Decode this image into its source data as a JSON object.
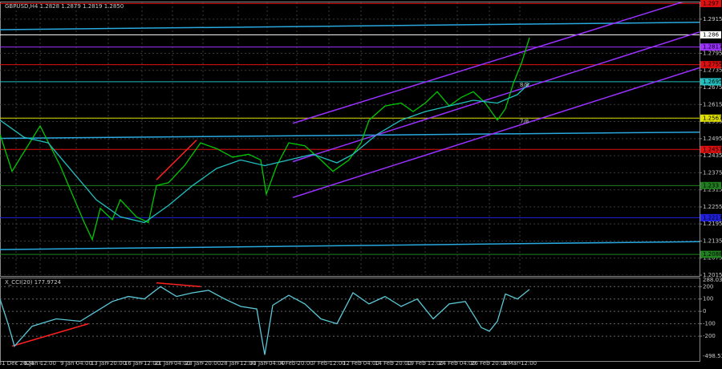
{
  "chart_data": [
    {
      "type": "line",
      "title": "GBPUSD,H4 1.2828 1.2879 1.2819 1.2850",
      "xlim": [
        0,
        872
      ],
      "xticks": [
        {
          "value": 20,
          "label": "31 Dec 2024"
        },
        {
          "value": 50,
          "label": "6 Jan 12:00"
        },
        {
          "value": 95,
          "label": "9 Jan 04:00"
        },
        {
          "value": 135,
          "label": "13 Jan 20:00"
        },
        {
          "value": 177,
          "label": "16 Jan 12:00"
        },
        {
          "value": 215,
          "label": "21 Jan 04:00"
        },
        {
          "value": 253,
          "label": "23 Jan 20:00"
        },
        {
          "value": 297,
          "label": "28 Jan 12:00"
        },
        {
          "value": 333,
          "label": "31 Jan 04:00"
        },
        {
          "value": 370,
          "label": "4 Feb 20:00"
        },
        {
          "value": 410,
          "label": "7 Feb 12:00"
        },
        {
          "value": 450,
          "label": "12 Feb 04:00"
        },
        {
          "value": 490,
          "label": "14 Feb 20:00"
        },
        {
          "value": 530,
          "label": "19 Feb 12:00"
        },
        {
          "value": 570,
          "label": "24 Feb 04:00"
        },
        {
          "value": 610,
          "label": "26 Feb 20:00"
        },
        {
          "value": 648,
          "label": "3 Mar 12:00"
        }
      ],
      "ylim": [
        1.2015,
        1.2974
      ],
      "yticks": [
        1.2915,
        1.2795,
        1.2735,
        1.2675,
        1.2615,
        1.2555,
        1.2495,
        1.2435,
        1.2375,
        1.2315,
        1.2255,
        1.2195,
        1.2135,
        1.2075,
        1.2015
      ],
      "grid": true,
      "series": [
        {
          "color": "#00c800",
          "x": [
            0,
            15,
            50,
            75,
            90,
            105,
            115,
            125,
            140,
            150,
            170,
            185,
            195,
            210,
            230,
            250,
            270,
            290,
            310,
            325,
            332,
            345,
            360,
            380,
            400,
            415,
            435,
            450,
            460,
            480,
            500,
            515,
            530,
            545,
            560,
            575,
            590,
            605,
            620,
            630,
            640,
            650,
            660
          ],
          "values": [
            1.251,
            1.238,
            1.254,
            1.24,
            1.23,
            1.22,
            1.214,
            1.225,
            1.221,
            1.228,
            1.222,
            1.22,
            1.233,
            1.234,
            1.24,
            1.248,
            1.246,
            1.243,
            1.244,
            1.242,
            1.23,
            1.24,
            1.248,
            1.247,
            1.242,
            1.238,
            1.242,
            1.248,
            1.256,
            1.261,
            1.262,
            1.259,
            1.262,
            1.266,
            1.261,
            1.264,
            1.266,
            1.262,
            1.256,
            1.26,
            1.269,
            1.276,
            1.285
          ]
        },
        {
          "color": "#20c0c0",
          "x": [
            0,
            30,
            60,
            90,
            120,
            150,
            180,
            210,
            240,
            270,
            300,
            330,
            360,
            390,
            420,
            440,
            470,
            500,
            530,
            560,
            590,
            620,
            645,
            660
          ],
          "values": [
            1.256,
            1.25,
            1.248,
            1.238,
            1.228,
            1.222,
            1.22,
            1.226,
            1.233,
            1.239,
            1.242,
            1.24,
            1.242,
            1.244,
            1.241,
            1.244,
            1.251,
            1.256,
            1.259,
            1.261,
            1.263,
            1.262,
            1.265,
            1.269
          ]
        }
      ],
      "trendlines": [
        {
          "color": "#2aa8e0",
          "x": [
            0,
            872
          ],
          "values": [
            1.2878,
            1.2904
          ]
        },
        {
          "color": "#2aa8e0",
          "x": [
            0,
            872
          ],
          "values": [
            1.2496,
            1.2518
          ]
        },
        {
          "color": "#2aa8e0",
          "x": [
            0,
            872
          ],
          "values": [
            1.2105,
            1.2133
          ]
        },
        {
          "color": "#9b30ff",
          "x": [
            365,
            872
          ],
          "values": [
            1.2549,
            1.2994
          ]
        },
        {
          "color": "#9b30ff",
          "x": [
            365,
            872
          ],
          "values": [
            1.2414,
            1.287
          ]
        },
        {
          "color": "#9b30ff",
          "x": [
            365,
            872
          ],
          "values": [
            1.2288,
            1.2744
          ]
        },
        {
          "color": "#ff2020",
          "x": [
            195,
            245
          ],
          "values": [
            1.235,
            1.249
          ]
        }
      ],
      "levels": [
        {
          "value": 1.297,
          "color": "#e01010"
        },
        {
          "value": 1.286,
          "color": "#ffffff"
        },
        {
          "value": 1.2817,
          "color": "#9b30ff"
        },
        {
          "value": 1.2755,
          "color": "#e01010"
        },
        {
          "value": 1.2695,
          "color": "#20c0c0"
        },
        {
          "value": 1.2567,
          "color": "#e0e000"
        },
        {
          "value": 1.2457,
          "color": "#e01010"
        },
        {
          "value": 1.233,
          "color": "#208020"
        },
        {
          "value": 1.2217,
          "color": "#2020e0"
        },
        {
          "value": 1.2088,
          "color": "#208020"
        }
      ],
      "annotations": [
        {
          "text": "8/8",
          "x": 648,
          "value": 1.2695
        },
        {
          "text": "7/8",
          "x": 648,
          "value": 1.2567
        }
      ]
    },
    {
      "type": "line",
      "title": "X_CCI(20) 177.9724",
      "xlim": [
        0,
        872
      ],
      "ylim": [
        -400,
        260
      ],
      "yticks": [
        200,
        100,
        0,
        -100,
        -200
      ],
      "scale_labels": [
        288.0311,
        -498.5384
      ],
      "series": [
        {
          "color": "#5bc8d8",
          "x": [
            0,
            10,
            18,
            40,
            70,
            100,
            120,
            140,
            160,
            180,
            200,
            220,
            240,
            260,
            280,
            300,
            320,
            330,
            340,
            360,
            380,
            400,
            420,
            440,
            460,
            480,
            500,
            520,
            540,
            560,
            580,
            600,
            610,
            620,
            630,
            645,
            660
          ],
          "values": [
            100,
            -100,
            -280,
            -120,
            -60,
            -80,
            0,
            80,
            120,
            100,
            200,
            120,
            150,
            170,
            100,
            40,
            20,
            -350,
            50,
            130,
            60,
            -60,
            -100,
            150,
            60,
            120,
            40,
            100,
            -60,
            60,
            80,
            -130,
            -160,
            -80,
            140,
            100,
            178
          ]
        }
      ],
      "trendlines": [
        {
          "color": "#ff2020",
          "x": [
            15,
            110
          ],
          "values": [
            -280,
            -100
          ]
        },
        {
          "color": "#ff2020",
          "x": [
            195,
            250
          ],
          "values": [
            230,
            200
          ]
        }
      ]
    }
  ]
}
